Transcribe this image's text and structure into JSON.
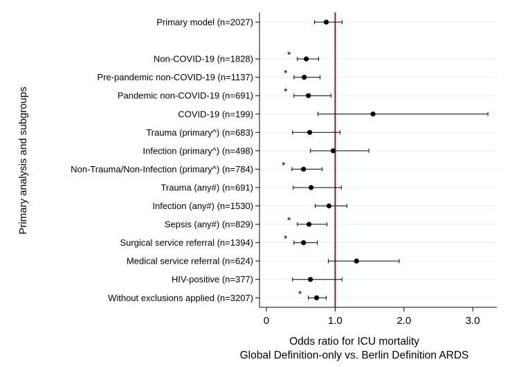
{
  "chart_data": {
    "type": "forest",
    "ylabel": "Primary analysis and subgroups",
    "xlabel_line1": "Odds ratio for ICU mortality",
    "xlabel_line2": "Global Definition-only vs. Berlin Definition ARDS",
    "xlim": [
      -0.1,
      3.35
    ],
    "xticks": [
      0,
      1,
      2,
      3
    ],
    "xtick_labels": [
      "0",
      "1.0",
      "2.0",
      "3.0"
    ],
    "reference_line": 1.0,
    "reference_color": "#8b1a3a",
    "rows": [
      {
        "label": "Primary model (n=2027)",
        "or": 0.87,
        "lo": 0.7,
        "hi": 1.1,
        "star": ""
      },
      {
        "label": "",
        "or": null,
        "lo": null,
        "hi": null,
        "star": ""
      },
      {
        "label": "Non-COVID-19 (n=1828)",
        "or": 0.58,
        "lo": 0.45,
        "hi": 0.76,
        "star": "*"
      },
      {
        "label": "Pre-pandemic non-COVID-19 (n=1137)",
        "or": 0.55,
        "lo": 0.4,
        "hi": 0.78,
        "star": "*"
      },
      {
        "label": "Pandemic non-COVID-19 (n=691)",
        "or": 0.61,
        "lo": 0.4,
        "hi": 0.94,
        "star": "*"
      },
      {
        "label": "COVID-19 (n=199)",
        "or": 1.55,
        "lo": 0.75,
        "hi": 3.22,
        "star": ""
      },
      {
        "label": "Trauma (primary^) (n=683)",
        "or": 0.63,
        "lo": 0.38,
        "hi": 1.07,
        "star": ""
      },
      {
        "label": "Infection (primary^) (n=498)",
        "or": 0.97,
        "lo": 0.64,
        "hi": 1.49,
        "star": ""
      },
      {
        "label": "Non-Trauma/Non-Infection (primary^) (n=784)",
        "or": 0.54,
        "lo": 0.37,
        "hi": 0.81,
        "star": "*"
      },
      {
        "label": "Trauma (any#) (n=691)",
        "or": 0.65,
        "lo": 0.39,
        "hi": 1.09,
        "star": ""
      },
      {
        "label": "Infection (any#) (n=1530)",
        "or": 0.91,
        "lo": 0.71,
        "hi": 1.17,
        "star": ""
      },
      {
        "label": "Sepsis (any#) (n=829)",
        "or": 0.62,
        "lo": 0.45,
        "hi": 0.88,
        "star": "*"
      },
      {
        "label": "Surgical service referral (n=1394)",
        "or": 0.54,
        "lo": 0.4,
        "hi": 0.74,
        "star": "*"
      },
      {
        "label": "Medical service referral (n=624)",
        "or": 1.31,
        "lo": 0.9,
        "hi": 1.93,
        "star": ""
      },
      {
        "label": "HIV-positive (n=377)",
        "or": 0.64,
        "lo": 0.38,
        "hi": 1.1,
        "star": ""
      },
      {
        "label": "Without exclusions applied (n=3207)",
        "or": 0.73,
        "lo": 0.61,
        "hi": 0.87,
        "star": "*"
      }
    ]
  }
}
